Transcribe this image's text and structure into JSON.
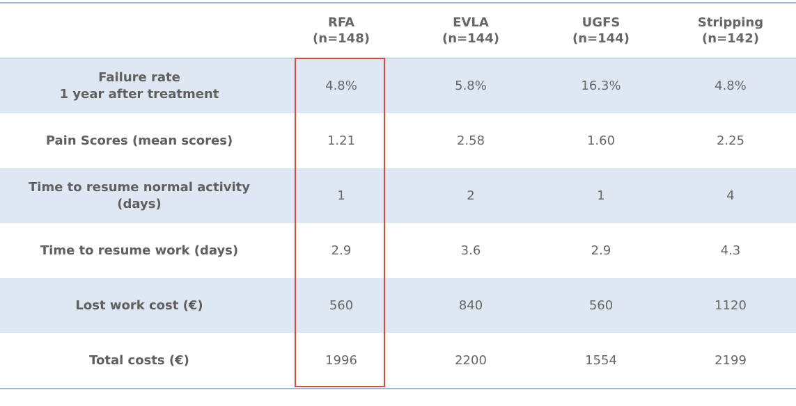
{
  "columns": [
    {
      "name": "RFA",
      "n": "(n=148)"
    },
    {
      "name": "EVLA",
      "n": "(n=144)"
    },
    {
      "name": "UGFS",
      "n": "(n=144)"
    },
    {
      "name": "Stripping",
      "n": "(n=142)"
    }
  ],
  "rows": [
    {
      "label": "Failure rate\n1 year after treatment",
      "values": [
        "4.8%",
        "5.8%",
        "16.3%",
        "4.8%"
      ]
    },
    {
      "label": "Pain Scores (mean scores)",
      "values": [
        "1.21",
        "2.58",
        "1.60",
        "2.25"
      ]
    },
    {
      "label": "Time to resume normal activity\n(days)",
      "values": [
        "1",
        "2",
        "1",
        "4"
      ]
    },
    {
      "label": "Time to resume work (days)",
      "values": [
        "2.9",
        "3.6",
        "2.9",
        "4.3"
      ]
    },
    {
      "label": "Lost work cost (€)",
      "values": [
        "560",
        "840",
        "560",
        "1120"
      ]
    },
    {
      "label": "Total costs (€)",
      "values": [
        "1996",
        "2200",
        "1554",
        "2199"
      ]
    }
  ],
  "colors": {
    "rule": "#9dbad6",
    "shaded_row": "#dfe7f3",
    "highlight": "#d24b3c"
  }
}
